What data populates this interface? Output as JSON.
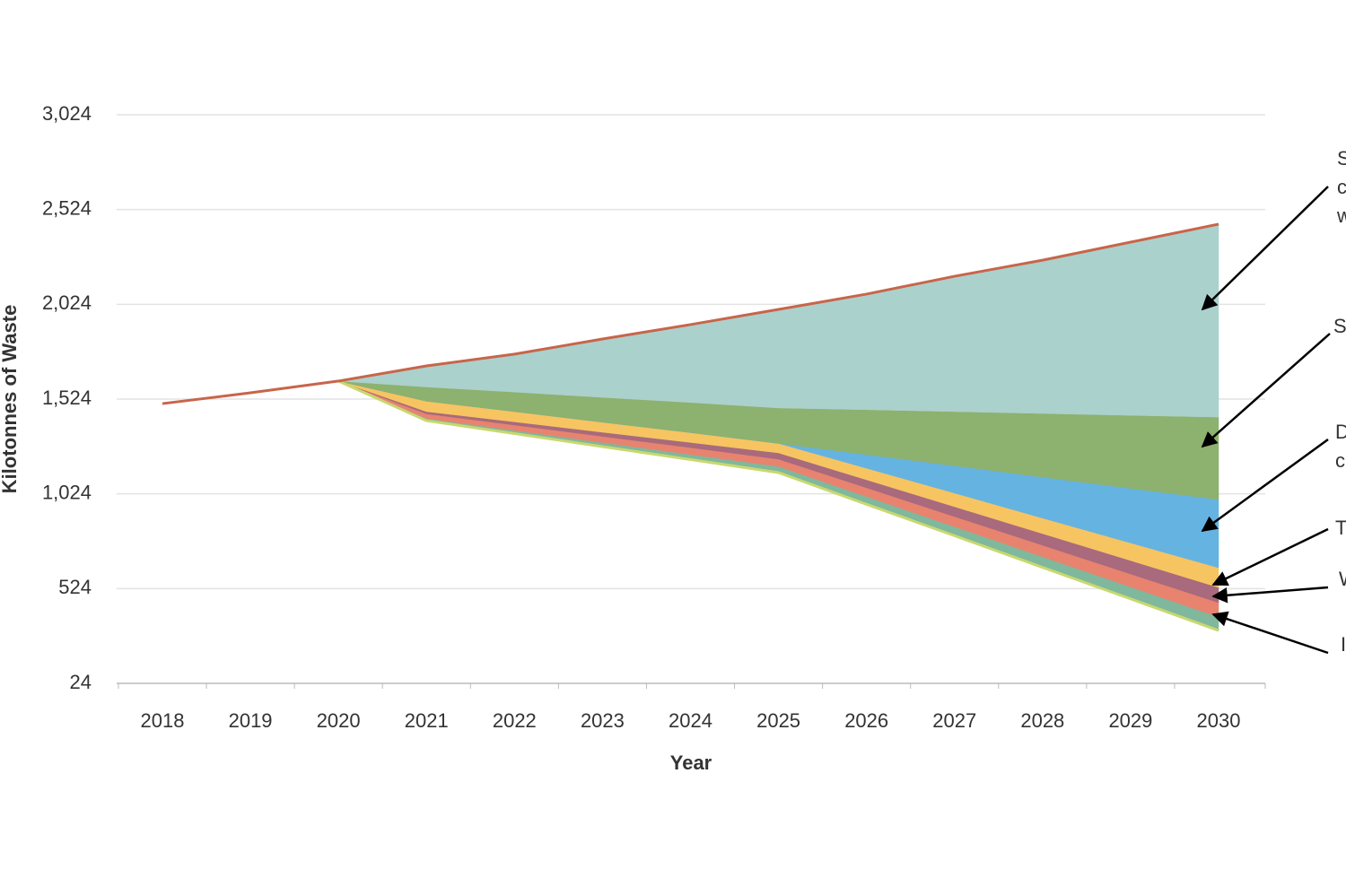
{
  "chart_data": {
    "type": "stacked-area",
    "x_label": "Year",
    "y_label": "Kilotonnes of Waste",
    "categories": [
      "2018",
      "2019",
      "2020",
      "2021",
      "2022",
      "2023",
      "2024",
      "2025",
      "2026",
      "2027",
      "2028",
      "2029",
      "2030"
    ],
    "ylim": [
      24,
      3024
    ],
    "yticks": [
      24,
      524,
      {
        "value": 1024,
        "label": "1,024"
      },
      {
        "value": 1524,
        "label": "1,524"
      },
      {
        "value": 2024,
        "label": "2,024"
      },
      {
        "value": 2524,
        "label": "2,524"
      },
      {
        "value": 3024,
        "label": "3,024"
      }
    ],
    "grid": true,
    "lines": [
      {
        "color": "#c8654a",
        "values": [
          1500,
          1557,
          1619,
          1699,
          1761,
          1841,
          1917,
          1997,
          2078,
          2172,
          2257,
          2352,
          2447
        ]
      },
      {
        "color": "#c9d86e",
        "values": [
          null,
          null,
          1619,
          1410,
          1342,
          1273,
          1205,
          1136,
          969,
          803,
          636,
          470,
          303
        ]
      }
    ],
    "series": [
      {
        "color": "#7fb89c",
        "values": [
          null,
          null,
          0,
          12,
          17,
          22,
          27,
          33,
          41,
          48,
          56,
          63,
          71
        ]
      },
      {
        "color": "#e8836f",
        "values": [
          null,
          null,
          0,
          24,
          28,
          32,
          36,
          38,
          46,
          53,
          61,
          68,
          76
        ]
      },
      {
        "color": "#a86a7c",
        "values": [
          null,
          null,
          0,
          12,
          17,
          22,
          27,
          33,
          42,
          52,
          61,
          71,
          80
        ]
      },
      {
        "color": "#f7c462",
        "values": [
          null,
          null,
          0,
          55,
          54,
          53,
          52,
          50,
          61,
          72,
          82,
          93,
          104
        ]
      },
      {
        "color": "#65b3e1",
        "values": [
          null,
          null,
          0,
          0,
          0,
          0,
          0,
          0,
          72,
          144,
          216,
          288,
          360
        ]
      },
      {
        "color": "#8db16f",
        "values": [
          null,
          null,
          0,
          75,
          103,
          131,
          159,
          187,
          237,
          286,
          336,
          385,
          435
        ]
      },
      {
        "color": "#abd1cc",
        "values": [
          null,
          null,
          0,
          111,
          200,
          308,
          411,
          520,
          610,
          714,
          809,
          914,
          1018
        ]
      }
    ],
    "annotations": [
      {
        "lines": [
          "S",
          "c",
          "w"
        ]
      },
      {
        "lines": [
          "S"
        ]
      },
      {
        "lines": [
          "D",
          "c"
        ]
      },
      {
        "lines": [
          "T"
        ]
      },
      {
        "lines": [
          "W"
        ]
      },
      {
        "lines": [
          "I"
        ]
      }
    ]
  }
}
